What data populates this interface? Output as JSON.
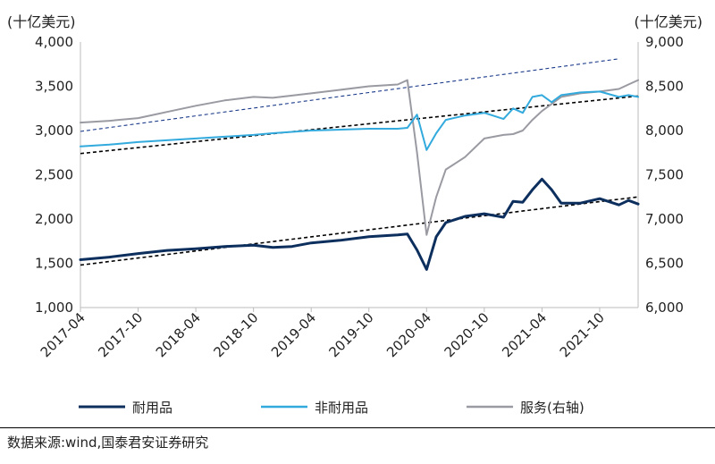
{
  "chart_data": {
    "type": "line",
    "left_unit": "(十亿美元)",
    "right_unit": "(十亿美元)",
    "y_left": {
      "lim": [
        1000,
        4000
      ],
      "ticks": [
        1000,
        1500,
        2000,
        2500,
        3000,
        3500,
        4000
      ],
      "tick_labels": [
        "1,000",
        "1,500",
        "2,000",
        "2,500",
        "3,000",
        "3,500",
        "4,000"
      ]
    },
    "y_right": {
      "lim": [
        6000,
        9000
      ],
      "ticks": [
        6000,
        6500,
        7000,
        7500,
        8000,
        8500,
        9000
      ],
      "tick_labels": [
        "6,000",
        "6,500",
        "7,000",
        "7,500",
        "8,000",
        "8,500",
        "9,000"
      ]
    },
    "x_labels": [
      "2017-04",
      "2017-10",
      "2018-04",
      "2018-10",
      "2019-04",
      "2019-10",
      "2020-04",
      "2020-10",
      "2021-04",
      "2021-10"
    ],
    "x_range": [
      "2017-04",
      "2022-02"
    ],
    "series": [
      {
        "name": "耐用品",
        "axis": "left",
        "color": "#0d2f5e",
        "width": 3,
        "x": [
          "2017-04",
          "2017-07",
          "2017-10",
          "2018-01",
          "2018-04",
          "2018-07",
          "2018-10",
          "2018-12",
          "2019-02",
          "2019-04",
          "2019-07",
          "2019-10",
          "2020-01",
          "2020-02",
          "2020-03",
          "2020-04",
          "2020-05",
          "2020-06",
          "2020-08",
          "2020-10",
          "2020-12",
          "2021-01",
          "2021-02",
          "2021-03",
          "2021-04",
          "2021-05",
          "2021-06",
          "2021-08",
          "2021-10",
          "2021-12",
          "2022-01",
          "2022-02"
        ],
        "values": [
          1540,
          1570,
          1610,
          1645,
          1665,
          1690,
          1705,
          1680,
          1690,
          1730,
          1760,
          1800,
          1820,
          1830,
          1650,
          1430,
          1800,
          1960,
          2030,
          2060,
          2020,
          2200,
          2190,
          2330,
          2450,
          2330,
          2180,
          2180,
          2230,
          2160,
          2210,
          2170
        ]
      },
      {
        "name": "非耐用品",
        "axis": "left",
        "color": "#33aadd",
        "width": 2,
        "x": [
          "2017-04",
          "2017-07",
          "2017-10",
          "2018-01",
          "2018-04",
          "2018-07",
          "2018-10",
          "2018-12",
          "2019-04",
          "2019-10",
          "2020-01",
          "2020-02",
          "2020-03",
          "2020-04",
          "2020-05",
          "2020-06",
          "2020-08",
          "2020-10",
          "2020-12",
          "2021-01",
          "2021-02",
          "2021-03",
          "2021-04",
          "2021-05",
          "2021-06",
          "2021-08",
          "2021-10",
          "2021-12",
          "2022-01",
          "2022-02"
        ],
        "values": [
          2820,
          2840,
          2870,
          2890,
          2910,
          2930,
          2950,
          2970,
          3000,
          3020,
          3020,
          3030,
          3180,
          2780,
          2970,
          3120,
          3170,
          3200,
          3130,
          3250,
          3200,
          3380,
          3400,
          3320,
          3400,
          3430,
          3440,
          3380,
          3400,
          3380
        ]
      },
      {
        "name": "服务(右轴)",
        "axis": "right",
        "color": "#9a9aa2",
        "width": 2,
        "x": [
          "2017-04",
          "2017-07",
          "2017-10",
          "2018-01",
          "2018-04",
          "2018-07",
          "2018-10",
          "2018-12",
          "2019-04",
          "2019-07",
          "2019-10",
          "2020-01",
          "2020-02",
          "2020-03",
          "2020-04",
          "2020-05",
          "2020-06",
          "2020-08",
          "2020-10",
          "2020-12",
          "2021-01",
          "2021-02",
          "2021-03",
          "2021-04",
          "2021-06",
          "2021-08",
          "2021-10",
          "2021-12",
          "2022-01",
          "2022-02"
        ],
        "values": [
          8090,
          8110,
          8140,
          8210,
          8280,
          8340,
          8380,
          8370,
          8420,
          8460,
          8500,
          8520,
          8570,
          7750,
          6820,
          7250,
          7560,
          7700,
          7910,
          7950,
          7960,
          8000,
          8120,
          8220,
          8380,
          8420,
          8440,
          8470,
          8520,
          8570
        ]
      }
    ],
    "trendlines": [
      {
        "axis": "left",
        "style": "dashed",
        "color": "#000000",
        "x": [
          "2017-04",
          "2022-02"
        ],
        "values": [
          1480,
          2250
        ]
      },
      {
        "axis": "left",
        "style": "dashed",
        "color": "#000000",
        "x": [
          "2017-04",
          "2022-02"
        ],
        "values": [
          2740,
          3390
        ]
      },
      {
        "axis": "right",
        "style": "dashed",
        "color": "#1a3a8a",
        "x": [
          "2017-04",
          "2021-12"
        ],
        "values": [
          7990,
          8810
        ]
      }
    ],
    "legend": [
      {
        "label": "耐用品",
        "color": "#0d2f5e"
      },
      {
        "label": "非耐用品",
        "color": "#33aadd"
      },
      {
        "label": "服务(右轴)",
        "color": "#9a9aa2"
      }
    ],
    "legend_position": "bottom",
    "grid": false
  },
  "source": "数据来源:wind,国泰君安证券研究"
}
